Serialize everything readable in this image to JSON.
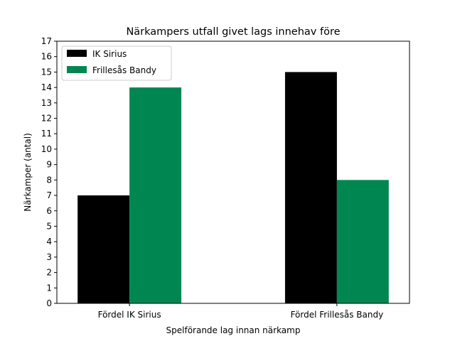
{
  "chart_data": {
    "type": "bar",
    "title": "Närkampers utfall givet lags innehav före",
    "xlabel": "Spelförande lag innan närkamp",
    "ylabel": "Närkamper (antal)",
    "categories": [
      "Fördel IK Sirius",
      "Fördel Frillesås Bandy"
    ],
    "series": [
      {
        "name": "IK Sirius",
        "values": [
          7,
          15
        ],
        "color": "#000000"
      },
      {
        "name": "Frillesås Bandy",
        "values": [
          14,
          8
        ],
        "color": "#008751"
      }
    ],
    "ylim": [
      0,
      17
    ],
    "yticks": [
      0,
      1,
      2,
      3,
      4,
      5,
      6,
      7,
      8,
      9,
      10,
      11,
      12,
      13,
      14,
      15,
      16,
      17
    ],
    "grid": false,
    "legend_position": "top-left"
  }
}
